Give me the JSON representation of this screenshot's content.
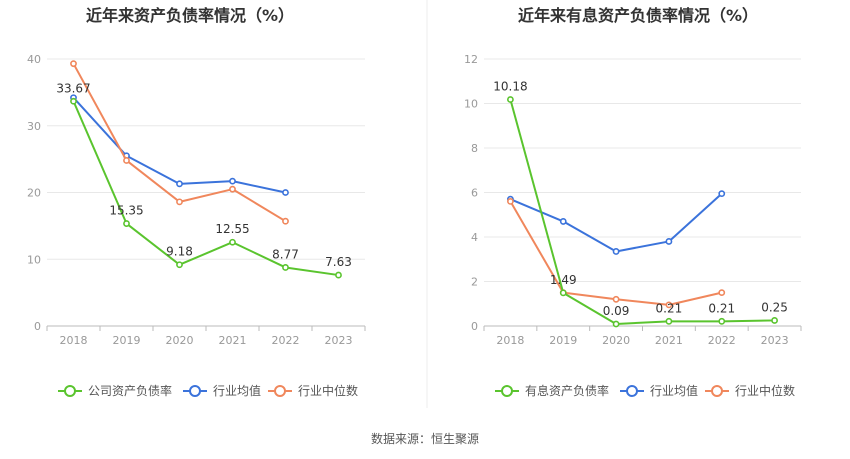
{
  "source_label": "数据来源：恒生聚源",
  "colors": {
    "green": "#5ac42e",
    "blue": "#3b73db",
    "orange": "#f0875c",
    "axis": "#999999",
    "grid": "#e8e8e8",
    "title": "#333333"
  },
  "chart_data": [
    {
      "type": "line",
      "title": "近年来资产负债率情况（%）",
      "categories": [
        "2018",
        "2019",
        "2020",
        "2021",
        "2022",
        "2023"
      ],
      "ylim": [
        0,
        40
      ],
      "yticks": [
        0,
        10,
        20,
        30,
        40
      ],
      "grid": true,
      "legend_placement": "bottom",
      "series": [
        {
          "name": "公司资产负债率",
          "color": "#5ac42e",
          "values": [
            33.67,
            15.35,
            9.18,
            12.55,
            8.77,
            7.63
          ],
          "labels": [
            "33.67",
            "15.35",
            "9.18",
            "12.55",
            "8.77",
            "7.63"
          ]
        },
        {
          "name": "行业均值",
          "color": "#3b73db",
          "values": [
            34.2,
            25.5,
            21.3,
            21.7,
            20.0,
            null
          ]
        },
        {
          "name": "行业中位数",
          "color": "#f0875c",
          "values": [
            39.3,
            24.8,
            18.6,
            20.5,
            15.7,
            null
          ]
        }
      ]
    },
    {
      "type": "line",
      "title": "近年来有息资产负债率情况（%）",
      "categories": [
        "2018",
        "2019",
        "2020",
        "2021",
        "2022",
        "2023"
      ],
      "ylim": [
        0,
        12
      ],
      "yticks": [
        0,
        2,
        4,
        6,
        8,
        10,
        12
      ],
      "grid": true,
      "legend_placement": "bottom",
      "series": [
        {
          "name": "有息资产负债率",
          "color": "#5ac42e",
          "values": [
            10.18,
            1.49,
            0.09,
            0.21,
            0.21,
            0.25
          ],
          "labels": [
            "10.18",
            "1.49",
            "0.09",
            "0.21",
            "0.21",
            "0.25"
          ]
        },
        {
          "name": "行业均值",
          "color": "#3b73db",
          "values": [
            5.7,
            4.7,
            3.35,
            3.8,
            5.95,
            null
          ]
        },
        {
          "name": "行业中位数",
          "color": "#f0875c",
          "values": [
            5.6,
            1.5,
            1.2,
            0.95,
            1.5,
            null
          ]
        }
      ]
    }
  ]
}
